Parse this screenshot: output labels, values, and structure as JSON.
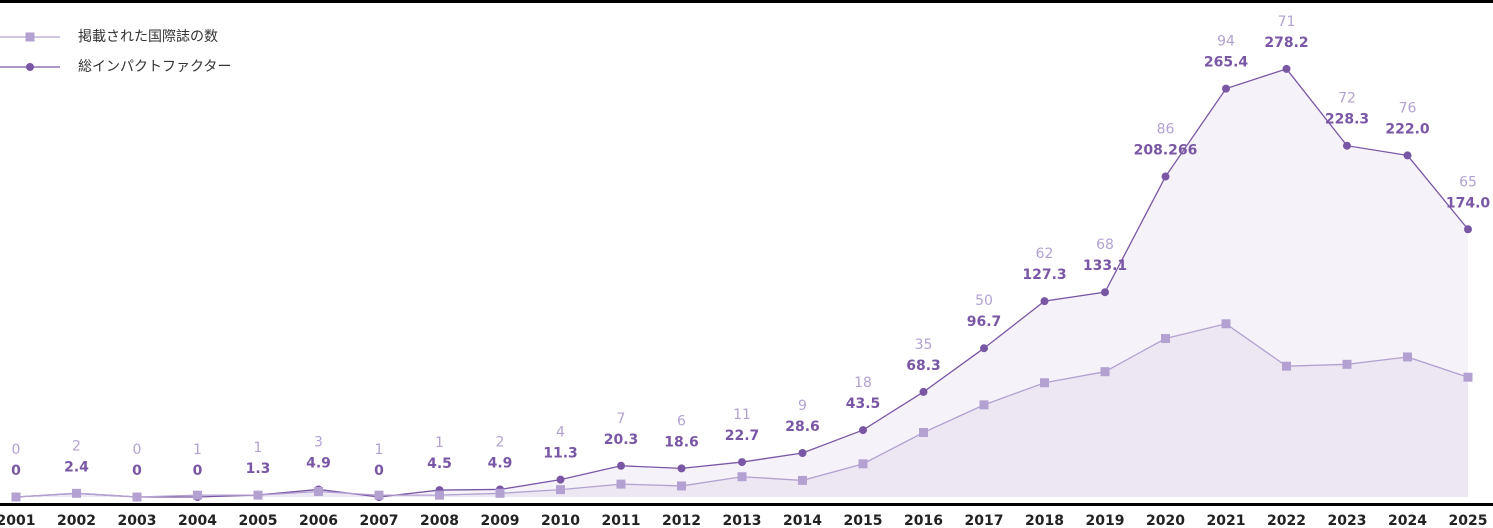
{
  "chart_data": {
    "type": "line",
    "categories": [
      "2001",
      "2002",
      "2003",
      "2004",
      "2005",
      "2006",
      "2007",
      "2008",
      "2009",
      "2010",
      "2011",
      "2012",
      "2013",
      "2014",
      "2015",
      "2016",
      "2017",
      "2018",
      "2019",
      "2020",
      "2021",
      "2022",
      "2023",
      "2024",
      "2025"
    ],
    "series": [
      {
        "name": "掲載された国際誌の数",
        "color": "#b3a2d1",
        "axis": "y2",
        "marker": "square",
        "values": [
          0,
          2,
          0,
          1,
          1,
          3,
          1,
          1,
          2,
          4,
          7,
          6,
          11,
          9,
          18,
          35,
          50,
          62,
          68,
          86,
          94,
          71,
          72,
          76,
          65
        ]
      },
      {
        "name": "総インパクトファクター",
        "color": "#7a57a5",
        "marker": "circle",
        "values": [
          0,
          2.4,
          0,
          0,
          1.3,
          4.9,
          0,
          4.5,
          4.9,
          11.3,
          20.3,
          18.6,
          22.7,
          28.6,
          43.5,
          68.3,
          96.7,
          127.3,
          133.1,
          208.266,
          265.4,
          278.2,
          228.3,
          222.0,
          174.0
        ],
        "value_labels": [
          "0",
          "2.4",
          "0",
          "0",
          "1.3",
          "4.9",
          "0",
          "4.5",
          "4.9",
          "11.3",
          "20.3",
          "18.6",
          "22.7",
          "28.6",
          "43.5",
          "68.3",
          "96.7",
          "127.3",
          "133.1",
          "208.266",
          "265.4",
          "278.2",
          "228.3",
          "222.0",
          "174.0"
        ]
      }
    ],
    "ylim": [
      0,
      297
    ],
    "y2lim": [
      0,
      248
    ],
    "legend": "top-left"
  }
}
